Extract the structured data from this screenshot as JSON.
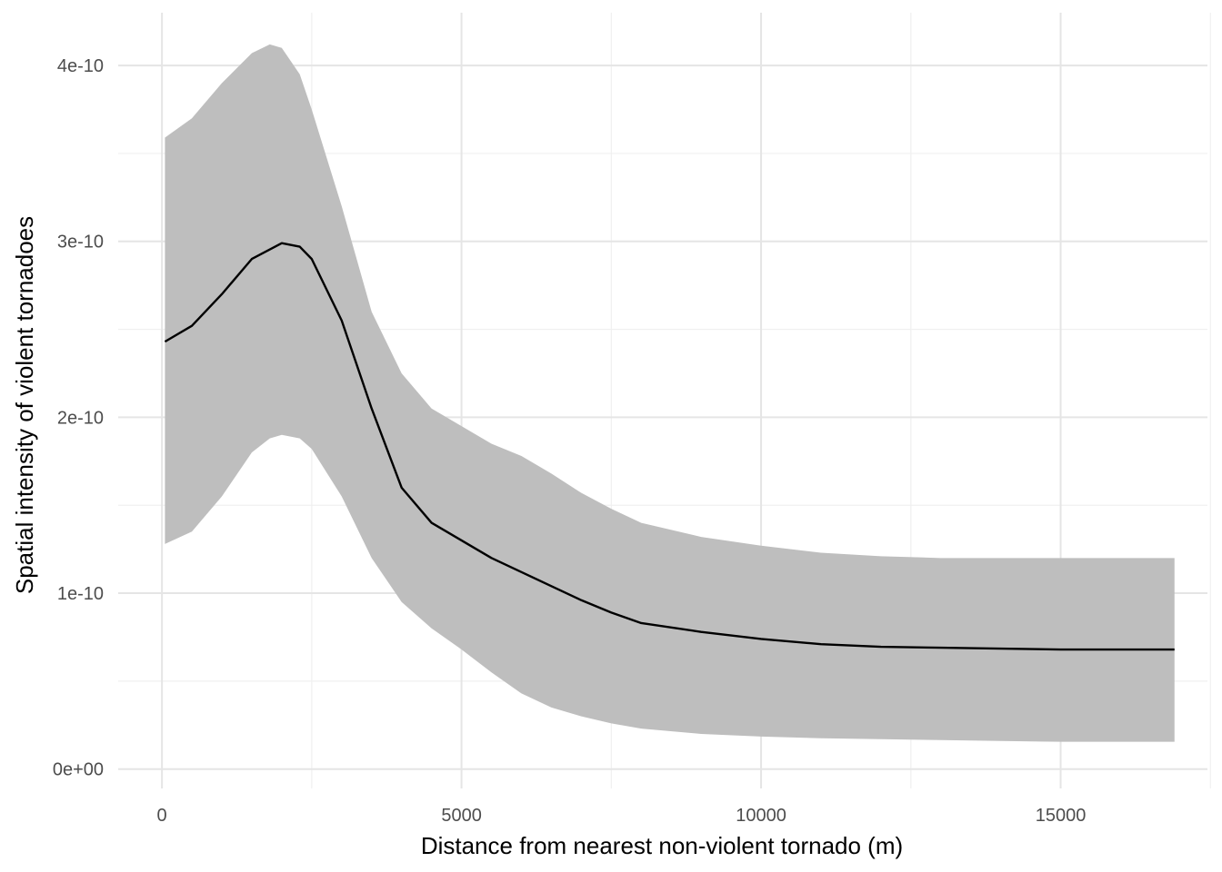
{
  "chart_data": {
    "type": "line",
    "xlabel": "Distance from nearest non-violent tornado (m)",
    "ylabel": "Spatial intensity of violent tornadoes",
    "xlim": [
      -730,
      17450
    ],
    "ylim": [
      -1.1e-11,
      4.3e-10
    ],
    "x_ticks": [
      {
        "value": 0,
        "label": "0"
      },
      {
        "value": 5000,
        "label": "5000"
      },
      {
        "value": 10000,
        "label": "10000"
      },
      {
        "value": 15000,
        "label": "15000"
      }
    ],
    "y_ticks": [
      {
        "value": 0,
        "label": "0e+00"
      },
      {
        "value": 1e-10,
        "label": "1e-10"
      },
      {
        "value": 2e-10,
        "label": "2e-10"
      },
      {
        "value": 3e-10,
        "label": "3e-10"
      },
      {
        "value": 4e-10,
        "label": "4e-10"
      }
    ],
    "x_minor": [
      2500,
      7500,
      12500,
      17500
    ],
    "y_minor": [
      5e-11,
      1.5e-10,
      2.5e-10,
      3.5e-10
    ],
    "grid": true,
    "series": [
      {
        "type": "line",
        "color": "#000000",
        "x": [
          50,
          500,
          1000,
          1500,
          2000,
          2300,
          2500,
          3000,
          3500,
          4000,
          4500,
          5000,
          5500,
          6000,
          6500,
          7000,
          7500,
          8000,
          9000,
          10000,
          11000,
          12000,
          13000,
          14000,
          15000,
          16000,
          16900
        ],
        "y": [
          2.43e-10,
          2.52e-10,
          2.7e-10,
          2.9e-10,
          2.99e-10,
          2.97e-10,
          2.9e-10,
          2.55e-10,
          2.05e-10,
          1.6e-10,
          1.4e-10,
          1.3e-10,
          1.2e-10,
          1.12e-10,
          1.04e-10,
          9.6e-11,
          8.9e-11,
          8.3e-11,
          7.8e-11,
          7.4e-11,
          7.1e-11,
          6.95e-11,
          6.9e-11,
          6.85e-11,
          6.8e-11,
          6.8e-11,
          6.8e-11
        ]
      },
      {
        "type": "ribbon",
        "color": "#bebebe",
        "x": [
          50,
          500,
          1000,
          1500,
          1800,
          2000,
          2300,
          2500,
          3000,
          3500,
          4000,
          4500,
          5000,
          5500,
          6000,
          6500,
          7000,
          7500,
          8000,
          9000,
          10000,
          11000,
          12000,
          13000,
          14000,
          15000,
          16000,
          16900
        ],
        "ymin": [
          1.28e-10,
          1.35e-10,
          1.55e-10,
          1.8e-10,
          1.88e-10,
          1.9e-10,
          1.88e-10,
          1.82e-10,
          1.55e-10,
          1.2e-10,
          9.5e-11,
          8e-11,
          6.8e-11,
          5.5e-11,
          4.3e-11,
          3.5e-11,
          3e-11,
          2.6e-11,
          2.3e-11,
          2e-11,
          1.85e-11,
          1.75e-11,
          1.7e-11,
          1.65e-11,
          1.6e-11,
          1.55e-11,
          1.55e-11,
          1.55e-11
        ],
        "ymax": [
          3.59e-10,
          3.7e-10,
          3.9e-10,
          4.07e-10,
          4.12e-10,
          4.1e-10,
          3.95e-10,
          3.75e-10,
          3.2e-10,
          2.6e-10,
          2.25e-10,
          2.05e-10,
          1.95e-10,
          1.85e-10,
          1.78e-10,
          1.68e-10,
          1.57e-10,
          1.48e-10,
          1.4e-10,
          1.32e-10,
          1.27e-10,
          1.23e-10,
          1.21e-10,
          1.2e-10,
          1.2e-10,
          1.2e-10,
          1.2e-10,
          1.2e-10
        ]
      }
    ]
  }
}
